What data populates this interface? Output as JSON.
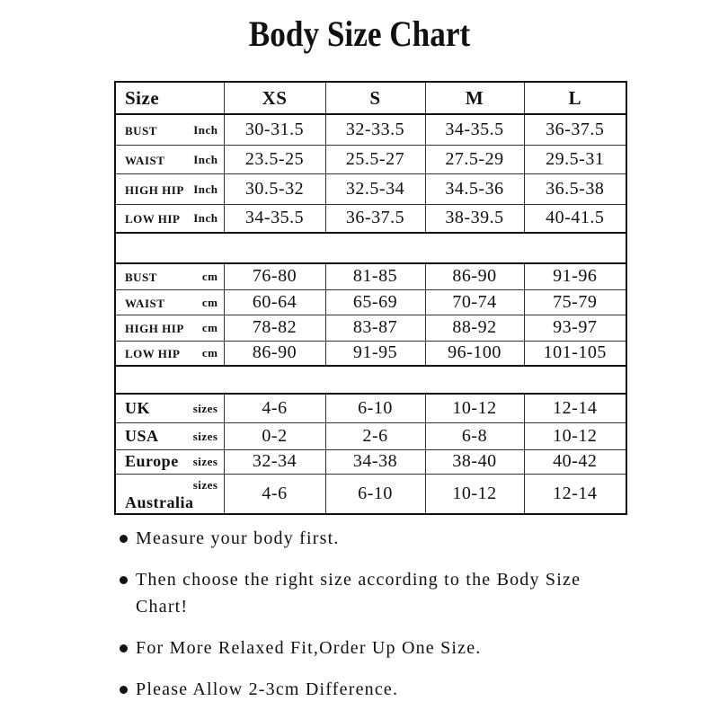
{
  "title": "Body Size Chart",
  "table": {
    "header": [
      "Size",
      "XS",
      "S",
      "M",
      "L"
    ],
    "inch_rows": [
      {
        "label": "BUST",
        "unit": "Inch",
        "values": [
          "30-31.5",
          "32-33.5",
          "34-35.5",
          "36-37.5"
        ]
      },
      {
        "label": "WAIST",
        "unit": "Inch",
        "values": [
          "23.5-25",
          "25.5-27",
          "27.5-29",
          "29.5-31"
        ]
      },
      {
        "label": "HIGH HIP",
        "unit": "Inch",
        "values": [
          "30.5-32",
          "32.5-34",
          "34.5-36",
          "36.5-38"
        ]
      },
      {
        "label": "LOW HIP",
        "unit": "Inch",
        "values": [
          "34-35.5",
          "36-37.5",
          "38-39.5",
          "40-41.5"
        ]
      }
    ],
    "cm_rows": [
      {
        "label": "BUST",
        "unit": "cm",
        "values": [
          "76-80",
          "81-85",
          "86-90",
          "91-96"
        ]
      },
      {
        "label": "WAIST",
        "unit": "cm",
        "values": [
          "60-64",
          "65-69",
          "70-74",
          "75-79"
        ]
      },
      {
        "label": "HIGH HIP",
        "unit": "cm",
        "values": [
          "78-82",
          "83-87",
          "88-92",
          "93-97"
        ]
      },
      {
        "label": "LOW HIP",
        "unit": "cm",
        "values": [
          "86-90",
          "91-95",
          "96-100",
          "101-105"
        ]
      }
    ],
    "size_rows": [
      {
        "label": "UK",
        "unit": "sizes",
        "values": [
          "4-6",
          "6-10",
          "10-12",
          "12-14"
        ]
      },
      {
        "label": "USA",
        "unit": "sizes",
        "values": [
          "0-2",
          "2-6",
          "6-8",
          "10-12"
        ]
      },
      {
        "label": "Europe",
        "unit": "sizes",
        "values": [
          "32-34",
          "34-38",
          "38-40",
          "40-42"
        ]
      },
      {
        "label": "Australia",
        "unit": "sizes",
        "values": [
          "4-6",
          "6-10",
          "10-12",
          "12-14"
        ]
      }
    ]
  },
  "notes": [
    "Measure your body first.",
    "Then choose the right size according to the Body Size Chart!",
    "For More Relaxed Fit,Order Up One Size.",
    "Please Allow 2-3cm Difference."
  ]
}
